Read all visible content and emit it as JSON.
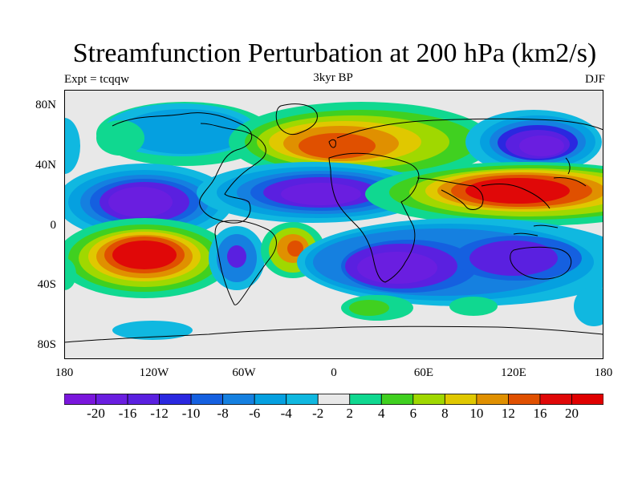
{
  "title": "Streamfunction Perturbation at 200 hPa (km2/s)",
  "left_string": "Expt = tcqqw",
  "center_string": "3kyr BP",
  "right_string": "DJF",
  "lat_ticks": [
    "80N",
    "40N",
    "0",
    "40S",
    "80S"
  ],
  "lon_ticks": [
    "180",
    "120W",
    "60W",
    "0",
    "60E",
    "120E",
    "180"
  ],
  "colorbar": {
    "labels": [
      "-20",
      "-16",
      "-12",
      "-10",
      "-8",
      "-6",
      "-4",
      "-2",
      "2",
      "4",
      "6",
      "8",
      "10",
      "12",
      "16",
      "20"
    ],
    "colors": [
      "#7a16dc",
      "#6a1ee0",
      "#5a20e0",
      "#2a28e0",
      "#1560e0",
      "#1580e0",
      "#05a0e0",
      "#10b8e0",
      "#e8e8e8",
      "#10d890",
      "#40d020",
      "#a0d800",
      "#e0c800",
      "#e09000",
      "#e05000",
      "#e00808",
      "#e00000"
    ]
  },
  "colors": {
    "neg_strong": "#6a1ee0",
    "neg_mid": "#1580e0",
    "neg_weak": "#10b8e0",
    "neutral": "#e8e8e8",
    "pos_weak": "#10d890",
    "pos_mid": "#e0c800",
    "pos_strong": "#e00808"
  }
}
